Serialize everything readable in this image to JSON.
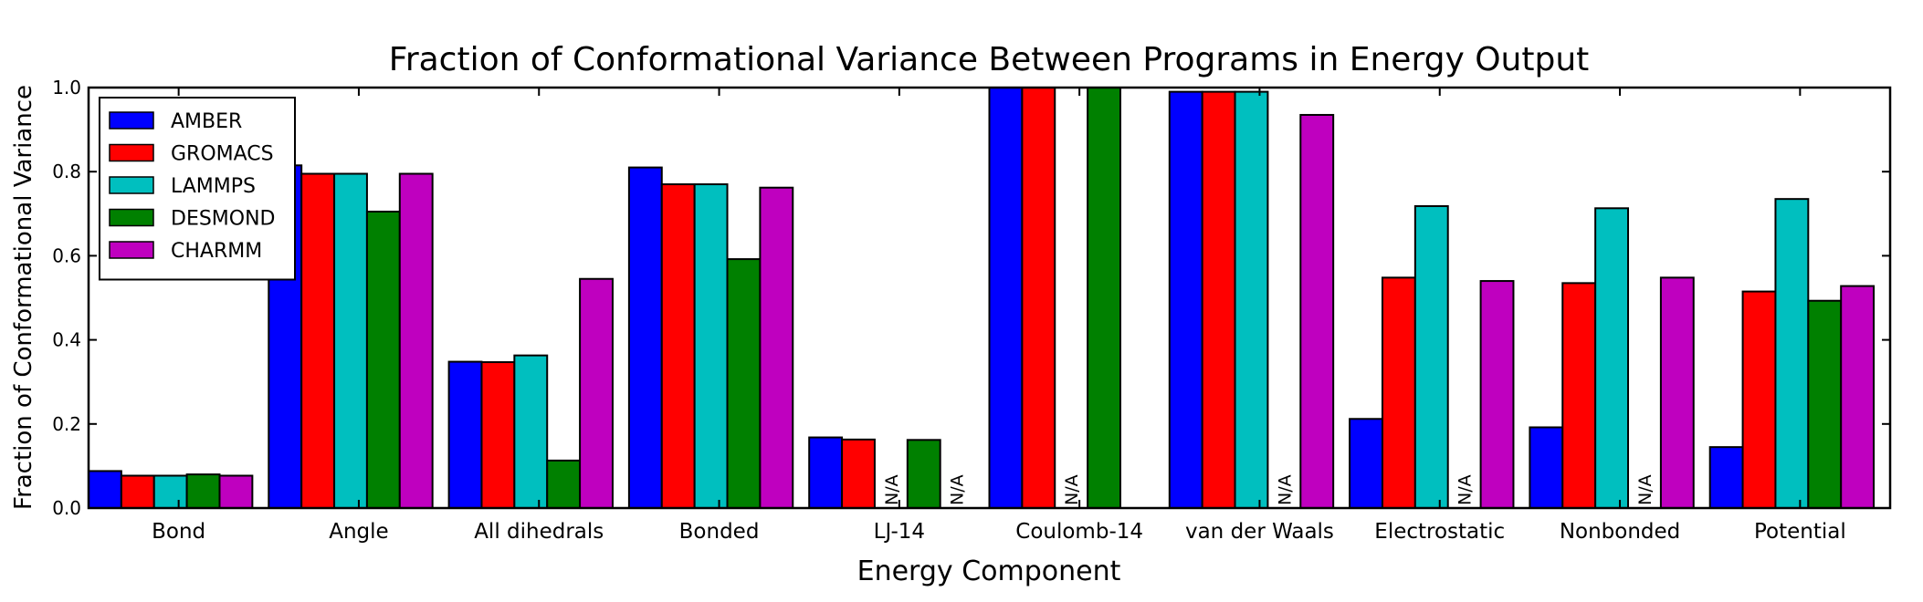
{
  "chart_data": {
    "type": "bar",
    "title": "Fraction of Conformational Variance Between Programs in Energy Output",
    "xlabel": "Energy Component",
    "ylabel": "Fraction of Conformational Variance",
    "ylim": [
      0,
      1.0
    ],
    "yticks": [
      "0.0",
      "0.2",
      "0.4",
      "0.6",
      "0.8",
      "1.0"
    ],
    "grid": false,
    "legend_position": "top-left",
    "na_label": "N/A",
    "categories": [
      "Bond",
      "Angle",
      "All dihedrals",
      "Bonded",
      "LJ-14",
      "Coulomb-14",
      "van der Waals",
      "Electrostatic",
      "Nonbonded",
      "Potential"
    ],
    "series": [
      {
        "name": "AMBER",
        "color": "#0000ff",
        "values": [
          0.088,
          0.815,
          0.348,
          0.81,
          0.168,
          1.0,
          0.99,
          0.212,
          0.192,
          0.145
        ]
      },
      {
        "name": "GROMACS",
        "color": "#ff0000",
        "values": [
          0.077,
          0.795,
          0.347,
          0.77,
          0.163,
          1.0,
          0.99,
          0.548,
          0.535,
          0.515
        ]
      },
      {
        "name": "LAMMPS",
        "color": "#00bfbf",
        "values": [
          0.077,
          0.795,
          0.363,
          0.77,
          null,
          null,
          0.99,
          0.718,
          0.713,
          0.735
        ]
      },
      {
        "name": "DESMOND",
        "color": "#008000",
        "values": [
          0.08,
          0.705,
          0.113,
          0.592,
          0.162,
          1.0,
          null,
          null,
          null,
          0.493
        ]
      },
      {
        "name": "CHARMM",
        "color": "#bf00bf",
        "values": [
          0.077,
          0.795,
          0.545,
          0.762,
          null,
          0.0,
          0.935,
          0.54,
          0.548,
          0.528
        ]
      }
    ]
  }
}
